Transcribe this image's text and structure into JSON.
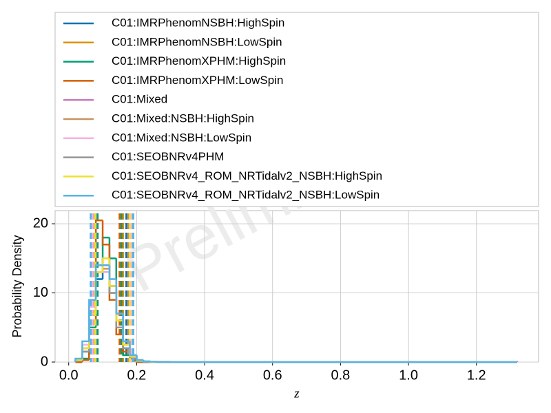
{
  "chart_data": {
    "type": "histogram",
    "xlabel": "z",
    "ylabel": "Probability Density",
    "watermark": "Preliminary",
    "bins": [
      0.02,
      0.04,
      0.06,
      0.08,
      0.1,
      0.12,
      0.14,
      0.16,
      0.18,
      0.2,
      0.22,
      0.24,
      0.26,
      0.28,
      0.3,
      1.32
    ],
    "xlim": [
      -0.04,
      1.383
    ],
    "ylim": [
      0,
      21.9
    ],
    "xticks": [
      {
        "value": 0,
        "label": "0.0"
      },
      0.2,
      0.4,
      0.6,
      0.8,
      {
        "value": 1,
        "label": "1.0"
      },
      1.2
    ],
    "yticks": [
      0,
      10,
      20
    ],
    "grid": true,
    "series": [
      {
        "name": "C01:IMRPhenomNSBH:HighSpin",
        "color": "#0173b2",
        "values": [
          0.2,
          1.5,
          6,
          12,
          13,
          11,
          7,
          3,
          1,
          0.3,
          0.1,
          0,
          0,
          0,
          0
        ],
        "interval": [
          0.075,
          0.17
        ]
      },
      {
        "name": "C01:IMRPhenomNSBH:LowSpin",
        "color": "#de8f05",
        "values": [
          0.3,
          2,
          7,
          13,
          14,
          10,
          6,
          2.5,
          0.8,
          0.2,
          0.1,
          0,
          0,
          0,
          0
        ],
        "interval": [
          0.08,
          0.16
        ]
      },
      {
        "name": "C01:IMRPhenomXPHM:HighSpin",
        "color": "#029e73",
        "values": [
          0,
          0.5,
          5,
          14,
          18,
          15,
          6,
          1,
          0.2,
          0,
          0,
          0,
          0,
          0,
          0
        ],
        "interval": [
          0.085,
          0.155
        ]
      },
      {
        "name": "C01:IMRPhenomXPHM:LowSpin",
        "color": "#d55e00",
        "values": [
          0,
          0.3,
          6,
          20.5,
          17,
          9,
          4,
          1.5,
          0.3,
          0,
          0,
          0,
          0,
          0,
          0
        ],
        "interval": [
          0.07,
          0.15
        ]
      },
      {
        "name": "C01:Mixed",
        "color": "#cc78bc",
        "values": [
          0.3,
          2,
          8,
          14,
          14,
          11,
          6,
          2,
          0.5,
          0.2,
          0.1,
          0.05,
          0.05,
          0.05,
          0.03
        ],
        "interval": [
          0.07,
          0.18
        ]
      },
      {
        "name": "C01:Mixed:NSBH:HighSpin",
        "color": "#ca9161",
        "values": [
          0.2,
          2,
          7,
          13,
          13.5,
          11,
          6,
          2.5,
          0.8,
          0.2,
          0.1,
          0,
          0,
          0,
          0
        ],
        "interval": [
          0.075,
          0.175
        ]
      },
      {
        "name": "C01:Mixed:NSBH:LowSpin",
        "color": "#fbafe4",
        "values": [
          0.3,
          2.5,
          8,
          13,
          13,
          12,
          7,
          3,
          1,
          0.3,
          0.1,
          0,
          0,
          0,
          0
        ],
        "interval": [
          0.07,
          0.185
        ]
      },
      {
        "name": "C01:SEOBNRv4PHM",
        "color": "#949494",
        "values": [
          0.2,
          1.5,
          7,
          14,
          15,
          10,
          5,
          2,
          0.5,
          0.1,
          0,
          0,
          0,
          0,
          0
        ],
        "interval": [
          0.08,
          0.19
        ]
      },
      {
        "name": "C01:SEOBNRv4_ROM_NRTidalv2_NSBH:HighSpin",
        "color": "#ece133",
        "values": [
          0.3,
          2,
          7,
          13,
          15,
          11,
          6,
          2.5,
          0.8,
          0.2,
          0.1,
          0,
          0,
          0,
          0
        ],
        "interval": [
          0.078,
          0.18
        ]
      },
      {
        "name": "C01:SEOBNRv4_ROM_NRTidalv2_NSBH:LowSpin",
        "color": "#56b4e9",
        "values": [
          0.5,
          3,
          9,
          14,
          14,
          12,
          7,
          3,
          1,
          0.3,
          0.1,
          0.05,
          0,
          0,
          0
        ],
        "interval": [
          0.065,
          0.19
        ]
      }
    ]
  }
}
